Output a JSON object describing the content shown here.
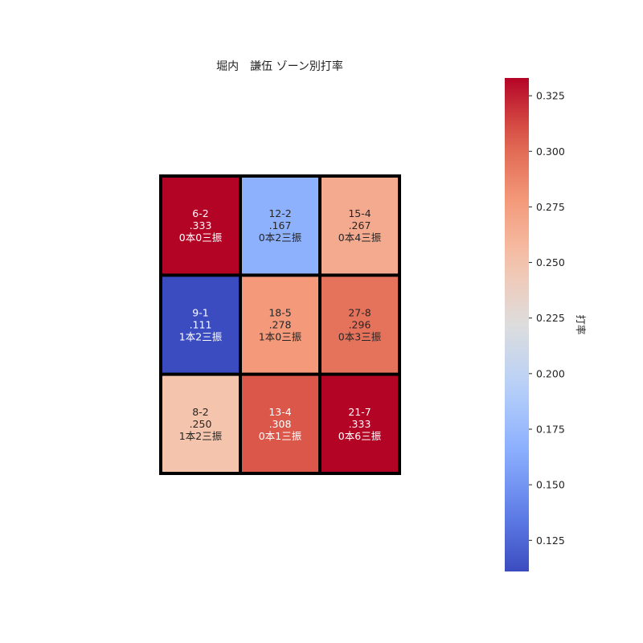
{
  "chart_data": {
    "type": "heatmap",
    "title": "堀内　謙伍 ゾーン別打率",
    "rows": 3,
    "cols": 3,
    "cells": [
      [
        {
          "value": 0.333,
          "lines": [
            "6-2",
            ".333",
            "0本0三振"
          ]
        },
        {
          "value": 0.167,
          "lines": [
            "12-2",
            ".167",
            "0本2三振"
          ]
        },
        {
          "value": 0.267,
          "lines": [
            "15-4",
            ".267",
            "0本4三振"
          ]
        }
      ],
      [
        {
          "value": 0.111,
          "lines": [
            "9-1",
            ".111",
            "1本2三振"
          ]
        },
        {
          "value": 0.278,
          "lines": [
            "18-5",
            ".278",
            "1本0三振"
          ]
        },
        {
          "value": 0.296,
          "lines": [
            "27-8",
            ".296",
            "0本3三振"
          ]
        }
      ],
      [
        {
          "value": 0.25,
          "lines": [
            "8-2",
            ".250",
            "1本2三振"
          ]
        },
        {
          "value": 0.308,
          "lines": [
            "13-4",
            ".308",
            "0本1三振"
          ]
        },
        {
          "value": 0.333,
          "lines": [
            "21-7",
            ".333",
            "0本6三振"
          ]
        }
      ]
    ],
    "colorbar": {
      "label": "打率",
      "min": 0.111,
      "max": 0.333,
      "ticks": [
        "0.125",
        "0.150",
        "0.175",
        "0.200",
        "0.225",
        "0.250",
        "0.275",
        "0.300",
        "0.325"
      ],
      "colormap": "coolwarm"
    },
    "grid_color": "#000000"
  }
}
